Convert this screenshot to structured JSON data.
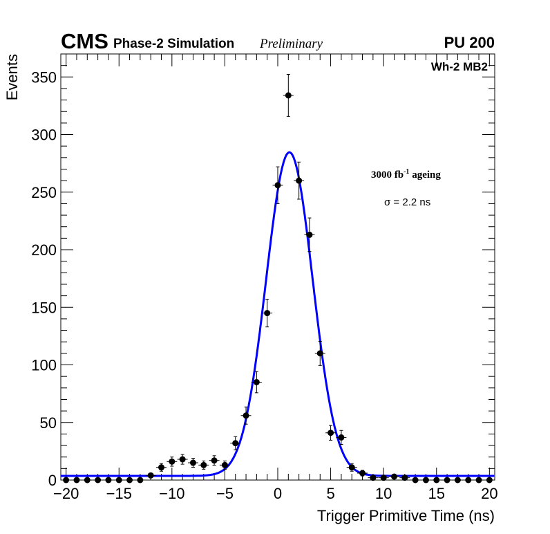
{
  "chart_data": {
    "type": "scatter",
    "title_cms": "CMS",
    "title_sim": "Phase-2 Simulation",
    "title_prelim": "Preliminary",
    "title_pu": "PU 200",
    "label_chamber": "Wh-2 MB2",
    "annotation_ageing_main": "3000 fb",
    "annotation_ageing_sup": "-1",
    "annotation_ageing_rest": " ageing",
    "annotation_sigma": "σ = 2.2 ns",
    "xlabel": "Trigger Primitive Time (ns)",
    "ylabel": "Events",
    "xlim": [
      -20.5,
      20.5
    ],
    "ylim": [
      0,
      370
    ],
    "xticks": [
      -20,
      -15,
      -10,
      -5,
      0,
      5,
      10,
      15,
      20
    ],
    "xtick_labels": [
      "−20",
      "−15",
      "−10",
      "−5",
      "0",
      "5",
      "10",
      "15",
      "20"
    ],
    "yticks": [
      0,
      50,
      100,
      150,
      200,
      250,
      300,
      350
    ],
    "ytick_labels": [
      "0",
      "50",
      "100",
      "150",
      "200",
      "250",
      "300",
      "350"
    ],
    "series": [
      {
        "name": "data",
        "x": [
          -20,
          -19,
          -18,
          -17,
          -16,
          -15,
          -14,
          -13,
          -12,
          -11,
          -10,
          -9,
          -8,
          -7,
          -6,
          -5,
          -4,
          -3,
          -2,
          -1,
          0,
          1,
          2,
          3,
          4,
          5,
          6,
          7,
          8,
          9,
          10,
          11,
          12,
          13,
          14,
          15,
          16,
          17,
          18,
          19,
          20
        ],
        "y": [
          0,
          0,
          0,
          0,
          0,
          0,
          0,
          0,
          4,
          11,
          16,
          18,
          15,
          13,
          17,
          13,
          32,
          56,
          85,
          145,
          256,
          334,
          260,
          213,
          110,
          41,
          37,
          11,
          6,
          2,
          2,
          3,
          2,
          0,
          0,
          0,
          0,
          0,
          0,
          0,
          0
        ]
      }
    ],
    "fit": {
      "type": "gaussian",
      "amplitude": 281,
      "mean": 1.1,
      "sigma": 2.2,
      "baseline": 3.6,
      "color": "#0000ff"
    }
  }
}
